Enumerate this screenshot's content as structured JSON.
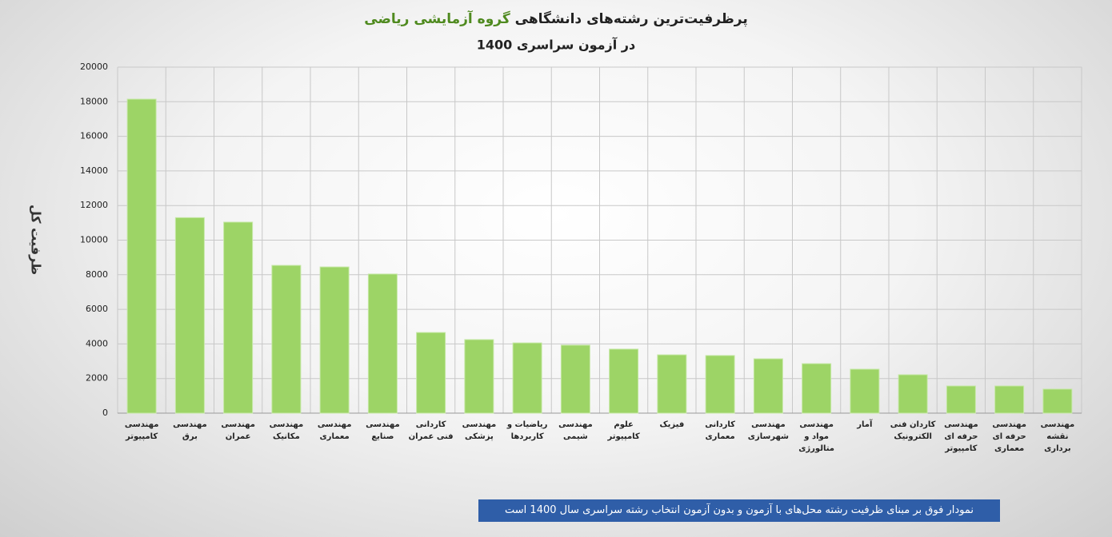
{
  "chart_data": {
    "type": "bar",
    "title": "پرظرفیت‌ترین رشته‌های دانشگاهی",
    "title_highlight": "گروه آزمایشی ریاضی",
    "subtitle": "در آزمون سراسری 1400",
    "y_label": "ظرفیت کل",
    "note": "نمودار فوق بر مبنای ظرفیت رشته محل‌های با آزمون و بدون آزمون انتخاب رشته سراسری سال 1400 است",
    "categories": [
      "مهندسی کامپیوتر",
      "مهندسی برق",
      "مهندسی عمران",
      "مهندسی مکانیک",
      "مهندسی معماری",
      "مهندسی صنایع",
      "کاردانی فنی عمران",
      "مهندسی پزشکی",
      "ریاضیات و کاربردها",
      "مهندسی شیمی",
      "علوم کامپیوتر",
      "فیزیک",
      "کاردانی معماری",
      "مهندسی شهرسازی",
      "مهندسی مواد و متالورژی",
      "آمار",
      "کاردان فنی الکترونیک",
      "مهندسی حرفه ای کامپیوتر",
      "مهندسی حرفه ای معماری",
      "مهندسی نقشه برداری"
    ],
    "values": [
      18150,
      11300,
      11040,
      8540,
      8450,
      8040,
      4660,
      4250,
      4060,
      3930,
      3700,
      3370,
      3330,
      3140,
      2860,
      2540,
      2220,
      1570,
      1570,
      1390
    ],
    "color": "#9dd466",
    "highlight_color": "#4f8a1f",
    "ylim": [
      0,
      20000
    ],
    "yticks": [
      0,
      2000,
      4000,
      6000,
      8000,
      10000,
      12000,
      14000,
      16000,
      18000,
      20000
    ],
    "grid": true
  }
}
